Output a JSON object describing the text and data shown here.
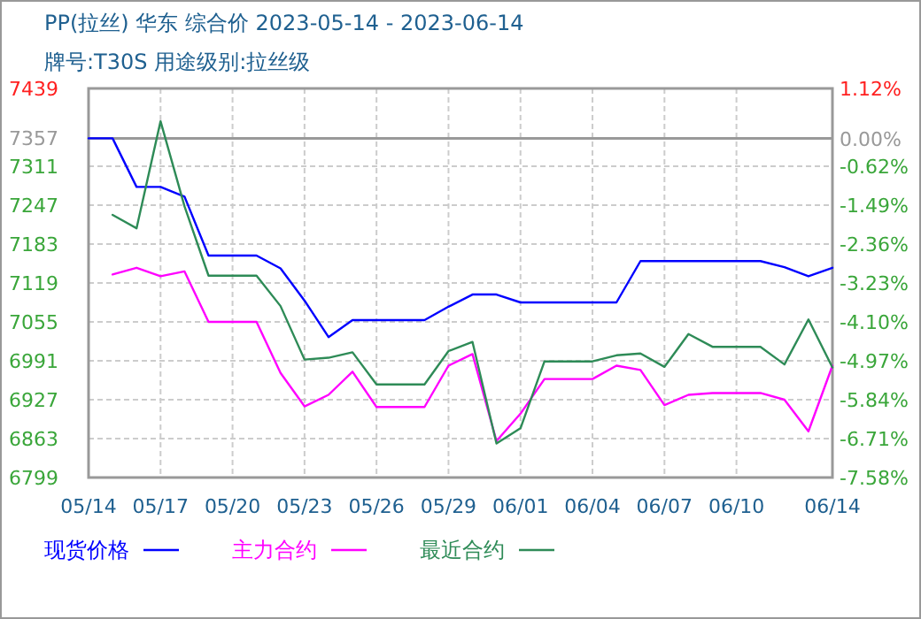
{
  "chart_data": {
    "type": "line",
    "title": "PP(拉丝) 华东 综合价 2023-05-14 - 2023-06-14",
    "subtitle": "牌号:T30S 用途级别:拉丝级",
    "categories": [
      "05/14",
      null,
      null,
      "05/17",
      null,
      null,
      "05/20",
      null,
      null,
      "05/23",
      null,
      null,
      "05/26",
      null,
      null,
      "05/29",
      null,
      null,
      "06/01",
      null,
      null,
      "06/04",
      null,
      null,
      "06/07",
      null,
      null,
      "06/10",
      null,
      null,
      null,
      "06/14"
    ],
    "series": [
      {
        "name": "现货价格",
        "color": "#0000ff",
        "values": [
          7357,
          7357,
          7277,
          7277,
          7261,
          7164,
          7164,
          7164,
          7143,
          7090,
          7030,
          7058,
          7058,
          7058,
          7058,
          7080,
          7100,
          7100,
          7087,
          7087,
          7087,
          7087,
          7087,
          7155,
          7155,
          7155,
          7155,
          7155,
          7155,
          7145,
          7130,
          7144
        ]
      },
      {
        "name": "主力合约",
        "color": "#ff00ff",
        "values": [
          null,
          7133,
          7144,
          7130,
          7138,
          7055,
          7055,
          7055,
          6971,
          6916,
          6935,
          6973,
          6915,
          6915,
          6915,
          6983,
          7002,
          6859,
          6904,
          6961,
          6961,
          6961,
          6983,
          6976,
          6918,
          6935,
          6938,
          6938,
          6938,
          6927,
          6875,
          6983
        ]
      },
      {
        "name": "最近合约",
        "color": "#2e8b57",
        "values": [
          null,
          7231,
          7209,
          7385,
          7245,
          7131,
          7131,
          7131,
          7081,
          6993,
          6996,
          7005,
          6952,
          6952,
          6952,
          7007,
          7022,
          6855,
          6880,
          6990,
          6990,
          6990,
          7000,
          7003,
          6981,
          7035,
          7014,
          7014,
          7014,
          6985,
          7059,
          6980
        ]
      }
    ],
    "ylim": [
      6799,
      7439
    ],
    "yticks": [
      6799,
      6863,
      6927,
      6991,
      7055,
      7119,
      7183,
      7247,
      7311,
      7357,
      7439
    ],
    "y2lim": [
      -7.58,
      1.12
    ],
    "y2ticks": [
      {
        "value": -7.58,
        "label": "-7.58%"
      },
      {
        "value": -6.71,
        "label": "-6.71%"
      },
      {
        "value": -5.84,
        "label": "-5.84%"
      },
      {
        "value": -4.97,
        "label": "-4.97%"
      },
      {
        "value": -4.1,
        "label": "-4.10%"
      },
      {
        "value": -3.23,
        "label": "-3.23%"
      },
      {
        "value": -2.36,
        "label": "-2.36%"
      },
      {
        "value": -1.49,
        "label": "-1.49%"
      },
      {
        "value": -0.62,
        "label": "-0.62%"
      },
      {
        "value": 0,
        "label": "0.00%"
      },
      {
        "value": 1.12,
        "label": "1.12%"
      }
    ],
    "ref_lines": [
      {
        "axis": "y",
        "value": 7357,
        "color": "#999999"
      }
    ],
    "grid": true,
    "legend": "bottom"
  }
}
